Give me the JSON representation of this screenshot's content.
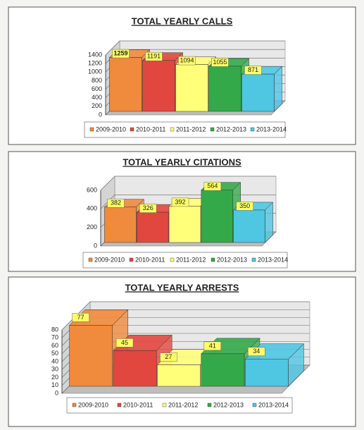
{
  "chart_data": [
    {
      "type": "bar3d",
      "title": "TOTAL YEARLY CALLS",
      "categories": [
        "2009-2010",
        "2010-2011",
        "2011-2012",
        "2012-2013",
        "2013-2014"
      ],
      "values": [
        1259,
        1191,
        1094,
        1055,
        871
      ],
      "colors": [
        "#f08a3c",
        "#e2473f",
        "#ffff7a",
        "#34a94a",
        "#4fc6e2"
      ],
      "ylim": [
        0,
        1400
      ],
      "yticks": [
        0,
        200,
        400,
        600,
        800,
        1000,
        1200,
        1400
      ],
      "grid": true
    },
    {
      "type": "bar3d",
      "title": "TOTAL YEARLY CITATIONS",
      "categories": [
        "2009-2010",
        "2010-2011",
        "2011-2012",
        "2012-2013",
        "2013-2014"
      ],
      "values": [
        382,
        326,
        392,
        564,
        350
      ],
      "colors": [
        "#f08a3c",
        "#e2473f",
        "#ffff7a",
        "#34a94a",
        "#4fc6e2"
      ],
      "ylim": [
        0,
        600
      ],
      "yticks": [
        0,
        200,
        400,
        600
      ],
      "grid": true
    },
    {
      "type": "bar3d",
      "title": "TOTAL YEARLY ARRESTS",
      "categories": [
        "2009-2010",
        "2010-2011",
        "2011-2012",
        "2012-2013",
        "2013-2014"
      ],
      "values": [
        77,
        45,
        27,
        41,
        34
      ],
      "colors": [
        "#f08a3c",
        "#e2473f",
        "#ffff7a",
        "#34a94a",
        "#4fc6e2"
      ],
      "ylim": [
        0,
        80
      ],
      "yticks": [
        0,
        10,
        20,
        30,
        40,
        50,
        60,
        70,
        80
      ],
      "grid": true
    }
  ]
}
